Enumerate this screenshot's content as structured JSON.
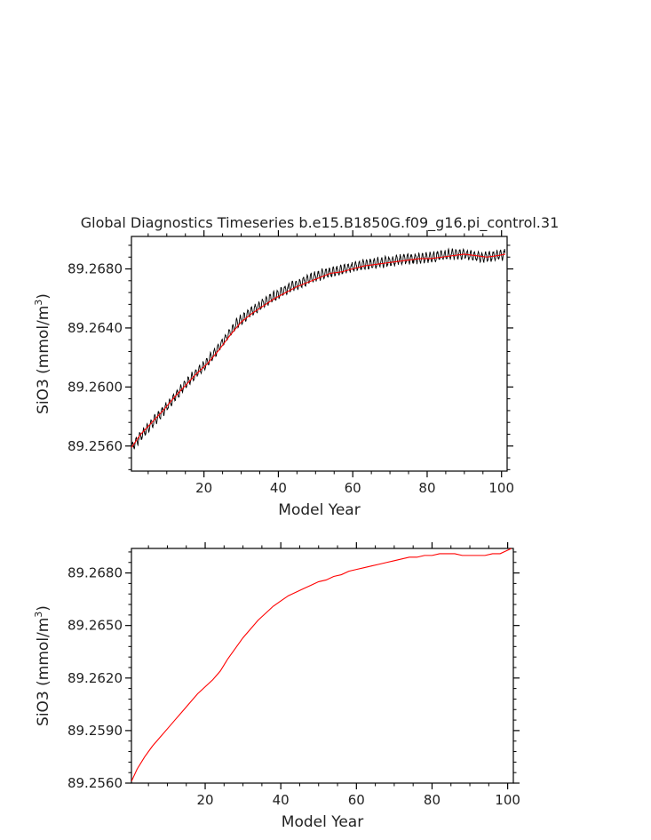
{
  "title": "Global Diagnostics Timeseries b.e15.B1850G.f09_g16.pi_control.31",
  "colors": {
    "monthly": "#000000",
    "annual": "#ff0000",
    "axis": "#000000"
  },
  "chart_data": [
    {
      "type": "line",
      "xlabel": "Model Year",
      "ylabel": "SiO3 (mmol/m",
      "ylabel_sup": "3",
      "ylabel_close": ")",
      "xlim": [
        0.5,
        101.5
      ],
      "ylim": [
        89.2543,
        89.2702
      ],
      "xticks": [
        20,
        40,
        60,
        80,
        100
      ],
      "yticks": [
        89.256,
        89.26,
        89.264,
        89.268
      ],
      "ytick_labels": [
        "89.2560",
        "89.2600",
        "89.2640",
        "89.2680"
      ],
      "grid": false,
      "series": [
        {
          "kind": "monthly-oscillation",
          "color": "#000000",
          "x_start": 0.5,
          "x_end": 101,
          "center": [
            89.2559,
            89.2568,
            89.2576,
            89.2584,
            89.2593,
            89.2601,
            89.2609,
            89.2616,
            89.2625,
            89.2635,
            89.2644,
            89.265,
            89.2655,
            89.266,
            89.2664,
            89.2668,
            89.2671,
            89.2674,
            89.2677,
            89.2678,
            89.268,
            89.2682,
            89.2683,
            89.2684,
            89.2685,
            89.2686,
            89.2687,
            89.2687,
            89.2688,
            89.2689,
            89.269,
            89.269,
            89.2689,
            89.2688,
            89.2689,
            89.269
          ],
          "amplitude": 0.0004
        },
        {
          "kind": "annual-mean",
          "color": "#ff0000",
          "x": [
            0.5,
            3,
            6,
            9,
            12,
            15,
            18,
            21,
            24,
            27,
            30,
            33,
            36,
            39,
            42,
            45,
            48,
            51,
            54,
            57,
            60,
            63,
            66,
            69,
            72,
            75,
            78,
            81,
            84,
            87,
            90,
            93,
            96,
            99,
            101
          ],
          "y": [
            89.2559,
            89.2568,
            89.2576,
            89.2584,
            89.2593,
            89.2601,
            89.2609,
            89.2616,
            89.2625,
            89.2635,
            89.2644,
            89.265,
            89.2655,
            89.266,
            89.2664,
            89.2668,
            89.2671,
            89.2674,
            89.2677,
            89.2678,
            89.268,
            89.2682,
            89.2683,
            89.2684,
            89.2685,
            89.2686,
            89.2687,
            89.2687,
            89.2688,
            89.2689,
            89.269,
            89.2689,
            89.2688,
            89.2689,
            89.269
          ]
        }
      ]
    },
    {
      "type": "line",
      "xlabel": "Model Year",
      "ylabel": "SiO3 (mmol/m",
      "ylabel_sup": "3",
      "ylabel_close": ")",
      "xlim": [
        0.5,
        101.5
      ],
      "ylim": [
        89.256,
        89.2694
      ],
      "xticks": [
        20,
        40,
        60,
        80,
        100
      ],
      "yticks": [
        89.256,
        89.259,
        89.262,
        89.265,
        89.268
      ],
      "ytick_labels": [
        "89.2560",
        "89.2590",
        "89.2620",
        "89.2650",
        "89.2680"
      ],
      "grid": false,
      "series": [
        {
          "kind": "annual-mean",
          "color": "#ff0000",
          "x": [
            0.5,
            2,
            4,
            6,
            8,
            10,
            12,
            14,
            16,
            18,
            20,
            22,
            24,
            26,
            28,
            30,
            32,
            34,
            36,
            38,
            40,
            42,
            44,
            46,
            48,
            50,
            52,
            54,
            56,
            58,
            60,
            62,
            64,
            66,
            68,
            70,
            72,
            74,
            76,
            78,
            80,
            82,
            84,
            86,
            88,
            90,
            92,
            94,
            96,
            98,
            101
          ],
          "y": [
            89.2561,
            89.2568,
            89.2575,
            89.2581,
            89.2586,
            89.2591,
            89.2596,
            89.2601,
            89.2606,
            89.2611,
            89.2615,
            89.2619,
            89.2624,
            89.2631,
            89.2637,
            89.2643,
            89.2648,
            89.2653,
            89.2657,
            89.2661,
            89.2664,
            89.2667,
            89.2669,
            89.2671,
            89.2673,
            89.2675,
            89.2676,
            89.2678,
            89.2679,
            89.2681,
            89.2682,
            89.2683,
            89.2684,
            89.2685,
            89.2686,
            89.2687,
            89.2688,
            89.2689,
            89.2689,
            89.269,
            89.269,
            89.2691,
            89.2691,
            89.2691,
            89.269,
            89.269,
            89.269,
            89.269,
            89.2691,
            89.2691,
            89.2694
          ]
        }
      ]
    }
  ]
}
